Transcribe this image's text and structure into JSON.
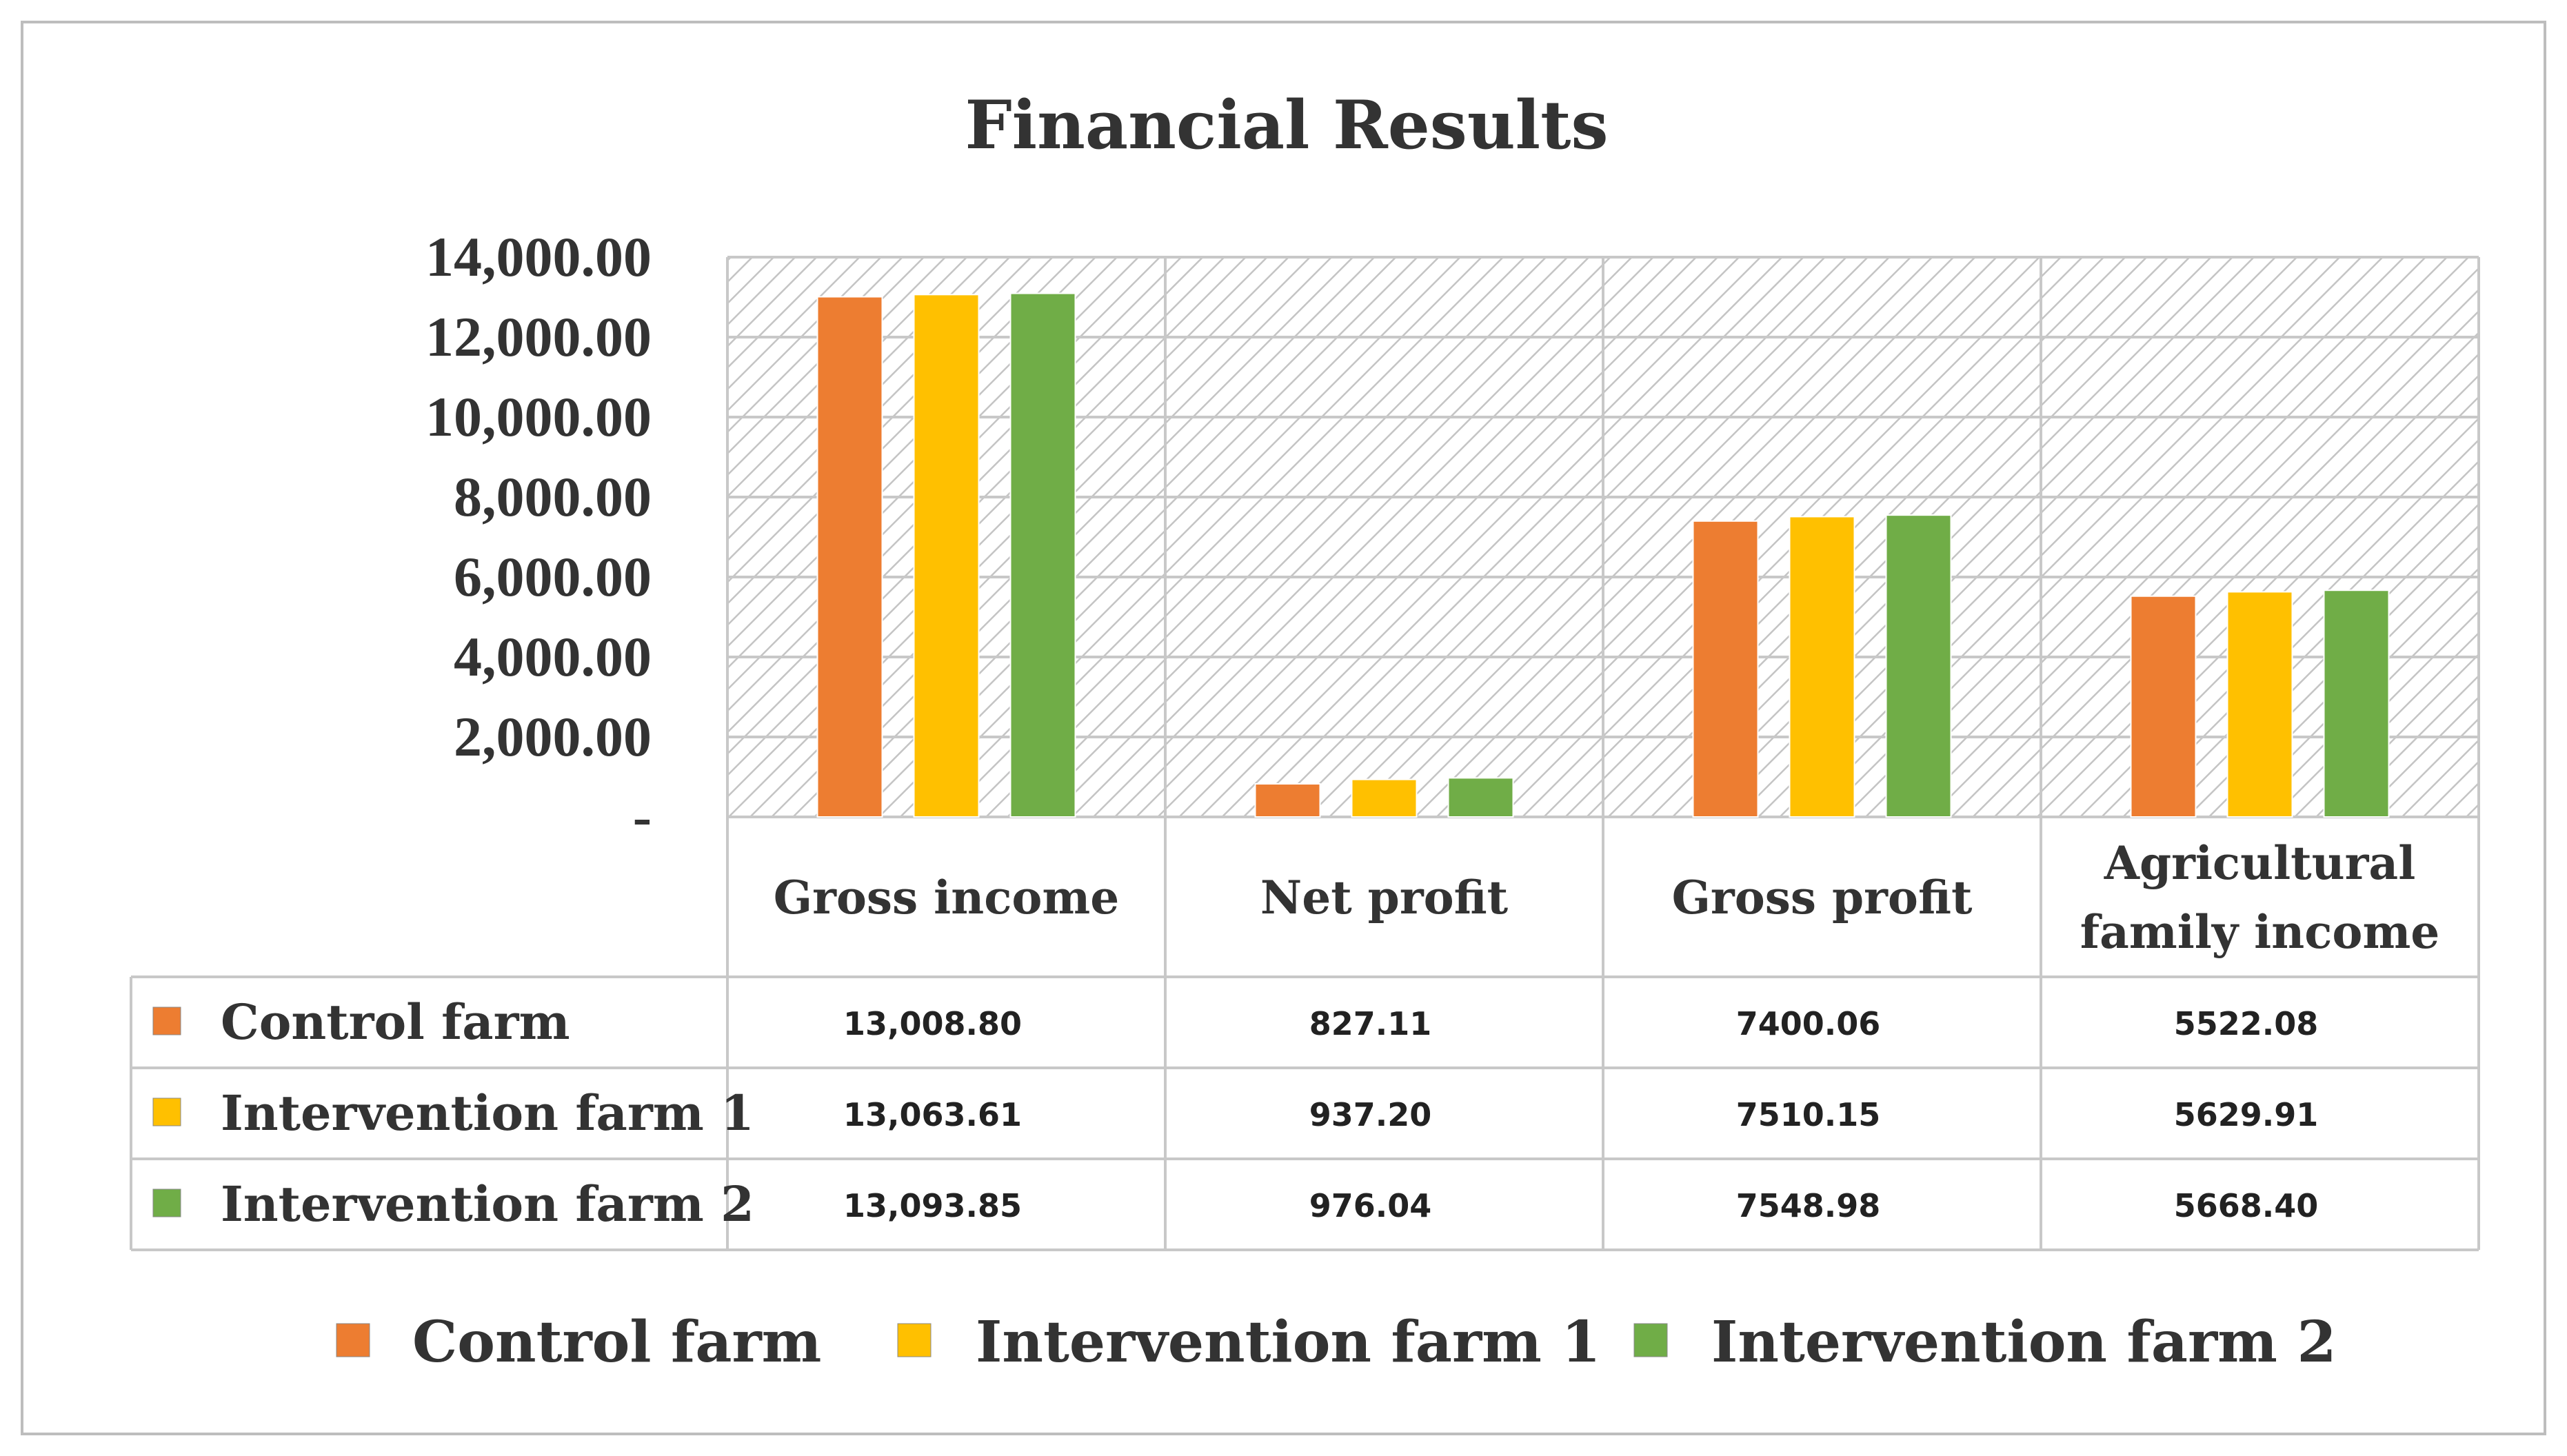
{
  "chart_data": {
    "type": "bar",
    "title": "Financial Results",
    "categories": [
      "Gross income",
      "Net profit",
      "Gross profit",
      "Agricultural family income"
    ],
    "category_lines": [
      [
        "Gross income"
      ],
      [
        "Net profit"
      ],
      [
        "Gross profit"
      ],
      [
        "Agricultural",
        "family income"
      ]
    ],
    "ylim": [
      0,
      14000
    ],
    "yticks": [
      {
        "value": 0,
        "label": "-"
      },
      {
        "value": 2000,
        "label": "2,000.00"
      },
      {
        "value": 4000,
        "label": "4,000.00"
      },
      {
        "value": 6000,
        "label": "6,000.00"
      },
      {
        "value": 8000,
        "label": "8,000.00"
      },
      {
        "value": 10000,
        "label": "10,000.00"
      },
      {
        "value": 12000,
        "label": "12,000.00"
      },
      {
        "value": 14000,
        "label": "14,000.00"
      }
    ],
    "grid": true,
    "legend_position": "bottom",
    "data_table": true,
    "series": [
      {
        "name": "Control farm",
        "color": "#ed7d31",
        "values": [
          13008.8,
          827.11,
          7400.06,
          5522.08
        ],
        "labels": [
          "13,008.80",
          "827.11",
          "7400.06",
          "5522.08"
        ]
      },
      {
        "name": "Intervention farm 1",
        "color": "#ffc000",
        "values": [
          13063.61,
          937.2,
          7510.15,
          5629.91
        ],
        "labels": [
          "13,063.61",
          "937.20",
          "7510.15",
          "5629.91"
        ]
      },
      {
        "name": "Intervention farm 2",
        "color": "#70ad47",
        "values": [
          13093.85,
          976.04,
          7548.98,
          5668.4
        ],
        "labels": [
          "13,093.85",
          "976.04",
          "7548.98",
          "5668.40"
        ]
      }
    ]
  }
}
